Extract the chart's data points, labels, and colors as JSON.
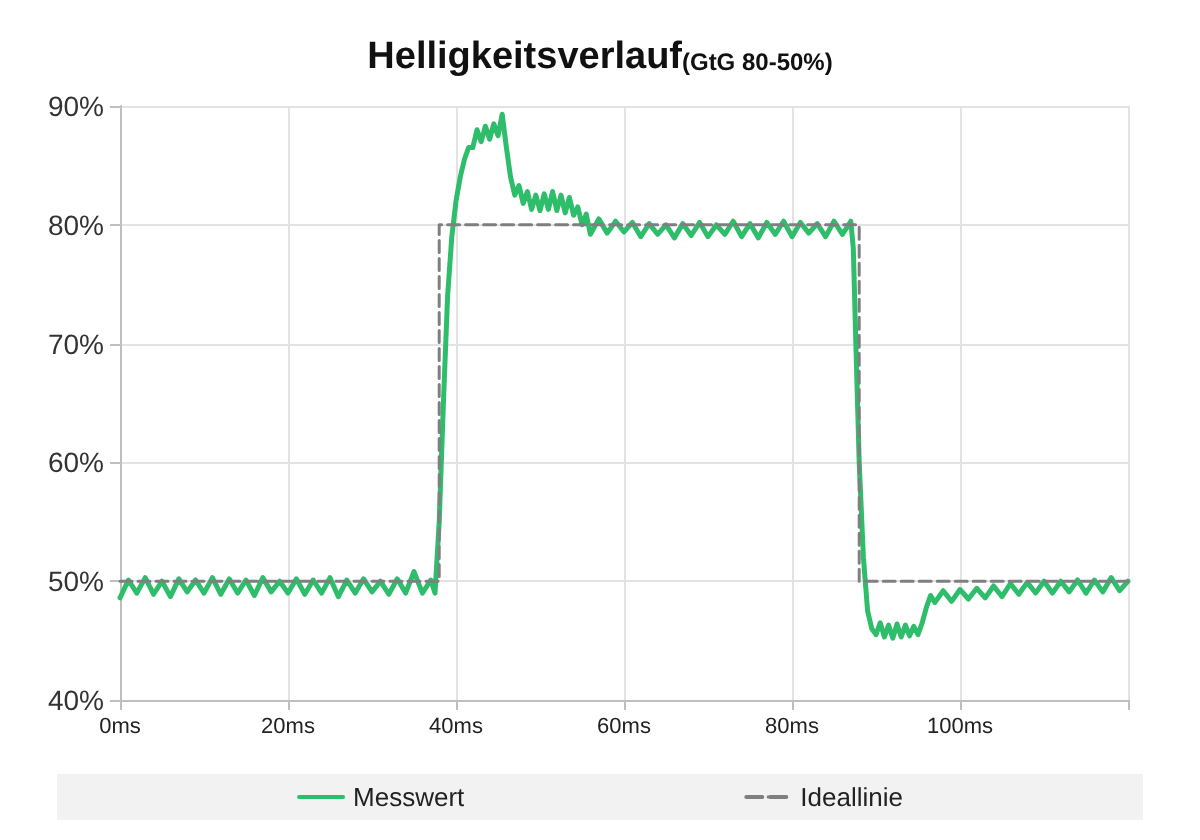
{
  "chart_data": {
    "type": "line",
    "title": "Helligkeitsverlauf",
    "subtitle": "(GtG 80-50%)",
    "xlim": [
      0,
      120
    ],
    "xticks": [
      {
        "value": 0,
        "label": "0ms"
      },
      {
        "value": 20,
        "label": "20ms"
      },
      {
        "value": 40,
        "label": "40ms"
      },
      {
        "value": 60,
        "label": "60ms"
      },
      {
        "value": 80,
        "label": "80ms"
      },
      {
        "value": 100,
        "label": "100ms"
      },
      {
        "value": 120,
        "label": null
      }
    ],
    "ylim": [
      40,
      90
    ],
    "yticks": [
      {
        "value": 40,
        "label": "40%"
      },
      {
        "value": 50,
        "label": "50%"
      },
      {
        "value": 60,
        "label": "60%"
      },
      {
        "value": 70,
        "label": "70%"
      },
      {
        "value": 80,
        "label": "80%"
      },
      {
        "value": 90,
        "label": "90%"
      }
    ],
    "grid": true,
    "legend": "bottom",
    "marker": "none",
    "series": [
      {
        "name": "Messwert",
        "color": "#2ebd6b",
        "line_style": "solid",
        "x": [
          0,
          1,
          2,
          3,
          4,
          5,
          6,
          7,
          8,
          9,
          10,
          11,
          12,
          13,
          14,
          15,
          16,
          17,
          18,
          19,
          20,
          21,
          22,
          23,
          24,
          25,
          26,
          27,
          28,
          29,
          30,
          31,
          32,
          33,
          34,
          35,
          36,
          37,
          37.5,
          38,
          38.5,
          39,
          39.5,
          40,
          40.5,
          41,
          41.5,
          42,
          42.5,
          43,
          43.5,
          44,
          44.5,
          45,
          45.5,
          46,
          46.5,
          47,
          47.5,
          48,
          48.5,
          49,
          49.5,
          50,
          50.5,
          51,
          51.5,
          52,
          52.5,
          53,
          53.5,
          54,
          54.5,
          55,
          55.5,
          56,
          57,
          58,
          59,
          60,
          61,
          62,
          63,
          64,
          65,
          66,
          67,
          68,
          69,
          70,
          71,
          72,
          73,
          74,
          75,
          76,
          77,
          78,
          79,
          80,
          81,
          82,
          83,
          84,
          85,
          86,
          87,
          87.3,
          87.6,
          88,
          88.5,
          89,
          89.5,
          90,
          90.5,
          91,
          91.5,
          92,
          92.5,
          93,
          93.5,
          94,
          94.5,
          95,
          95.5,
          96,
          96.5,
          97,
          98,
          99,
          100,
          101,
          102,
          103,
          104,
          105,
          106,
          107,
          108,
          109,
          110,
          111,
          112,
          113,
          114,
          115,
          116,
          117,
          118,
          119,
          120
        ],
        "values": [
          48.6,
          50.1,
          49.0,
          50.3,
          48.9,
          50.0,
          48.7,
          50.2,
          49.1,
          50.1,
          49.0,
          50.3,
          48.9,
          50.2,
          49.0,
          50.1,
          48.8,
          50.3,
          49.1,
          50.0,
          49.0,
          50.2,
          48.9,
          50.1,
          49.0,
          50.3,
          48.7,
          50.1,
          49.0,
          50.2,
          49.1,
          50.0,
          48.9,
          50.2,
          49.0,
          50.8,
          49.0,
          50.1,
          49.0,
          55,
          65,
          74,
          79,
          82,
          84,
          85.5,
          86.5,
          86.5,
          88,
          87,
          88.3,
          87.2,
          88.5,
          87.5,
          89.3,
          86.5,
          84,
          82.5,
          83.3,
          81.8,
          82.8,
          81.3,
          82.5,
          81.2,
          82.6,
          81.3,
          82.8,
          81.2,
          82.5,
          81.0,
          82.3,
          80.8,
          81.5,
          80.0,
          80.9,
          79.2,
          80.5,
          79.3,
          80.3,
          79.4,
          80.2,
          79.0,
          80.1,
          79.2,
          80.0,
          78.9,
          80.1,
          79.1,
          80.2,
          79.0,
          80.0,
          79.2,
          80.3,
          79.0,
          80.1,
          78.9,
          80.2,
          79.2,
          80.3,
          79.0,
          80.2,
          79.3,
          80.1,
          79.0,
          80.3,
          79.2,
          80.3,
          78,
          70,
          60,
          52,
          47.5,
          46.0,
          45.5,
          46.5,
          45.3,
          46.3,
          45.2,
          46.4,
          45.3,
          46.3,
          45.4,
          46.2,
          45.5,
          46.5,
          47.8,
          48.8,
          48.2,
          49.2,
          48.3,
          49.3,
          48.5,
          49.4,
          48.6,
          49.6,
          48.7,
          49.8,
          48.9,
          49.9,
          49.0,
          50.0,
          49.0,
          50.0,
          49.1,
          50.1,
          49.0,
          50.1,
          49.1,
          50.3,
          49.2,
          50.0
        ]
      },
      {
        "name": "Ideallinie",
        "type": "step",
        "color": "#7f7f7f",
        "line_style": "dashed",
        "x": [
          0,
          38,
          88,
          120
        ],
        "values": [
          50,
          80,
          50,
          50
        ]
      }
    ]
  }
}
